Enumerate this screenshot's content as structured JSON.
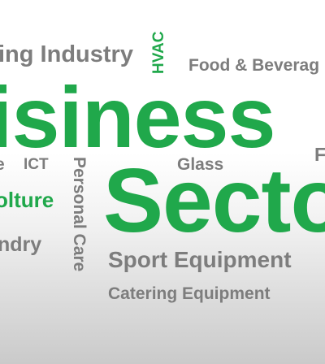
{
  "words": {
    "manufacturing_industry": "ing Industry",
    "hvac": "HVAC",
    "food_beverage": "Food & Beverag",
    "business": "isiness",
    "partial_e": "e",
    "ict": "ICT",
    "personal_care": "Personal Care",
    "glass": "Glass",
    "partial_f": "F",
    "agriculture": "olture",
    "sector": "Secto",
    "laundry": "ndry",
    "sport_equipment": "Sport Equipment",
    "catering_equipment": "Catering Equipment"
  },
  "colors": {
    "green": "#20a84b",
    "gray": "#7d7d7d",
    "background_top": "#ffffff",
    "background_bottom": "#cacaca"
  }
}
